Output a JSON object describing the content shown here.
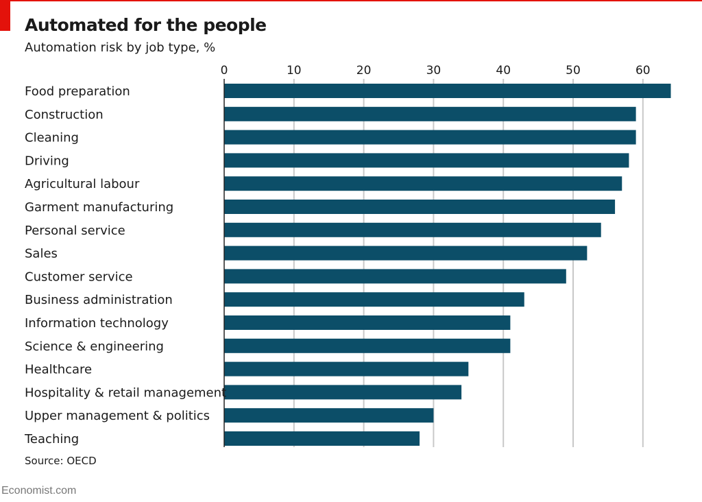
{
  "chart_data": {
    "type": "bar",
    "orientation": "horizontal",
    "title": "Automated for the people",
    "subtitle": "Automation risk by job type, %",
    "source": "Source: OECD",
    "categories": [
      "Food preparation",
      "Construction",
      "Cleaning",
      "Driving",
      "Agricultural labour",
      "Garment manufacturing",
      "Personal service",
      "Sales",
      "Customer service",
      "Business administration",
      "Information technology",
      "Science & engineering",
      "Healthcare",
      "Hospitality & retail management",
      "Upper management & politics",
      "Teaching"
    ],
    "values": [
      64,
      59,
      59,
      58,
      57,
      56,
      54,
      52,
      49,
      43,
      41,
      41,
      35,
      34,
      30,
      28
    ],
    "xlim": [
      0,
      65
    ],
    "xticks": [
      "0",
      "10",
      "20",
      "30",
      "40",
      "50",
      "60"
    ],
    "x_axis_position": "top",
    "grid": true,
    "colors": {
      "bar": "#0c4e68",
      "accent": "#e3120b",
      "grid": "#c8c8c8"
    }
  },
  "brand": "Economist.com"
}
